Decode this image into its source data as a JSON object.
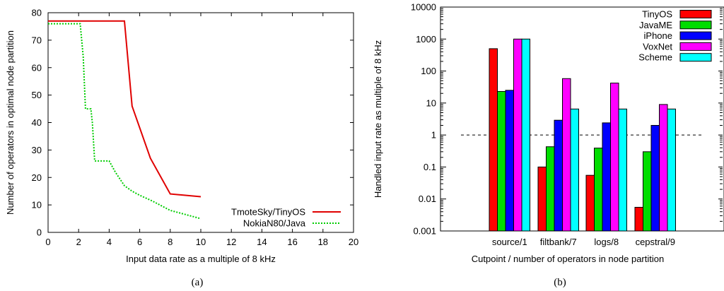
{
  "chart_data": [
    {
      "type": "line",
      "caption": "(a)",
      "xlabel": "Input data rate as a multiple of 8 kHz",
      "ylabel": "Number of operators in optimal node partition",
      "xlim": [
        0,
        20
      ],
      "ylim": [
        0,
        80
      ],
      "xticks": [
        "0",
        "2",
        "4",
        "6",
        "8",
        "10",
        "12",
        "14",
        "16",
        "18",
        "20"
      ],
      "yticks": [
        "0",
        "10",
        "20",
        "30",
        "40",
        "50",
        "60",
        "70",
        "80"
      ],
      "grid": false,
      "legend_position": "bottom-right",
      "series": [
        {
          "name": "TmoteSky/TinyOS",
          "color": "#e00000",
          "style": "solid",
          "x": [
            0,
            5,
            5.5,
            6.7,
            8,
            10
          ],
          "y": [
            77,
            77,
            46,
            27,
            14,
            13
          ]
        },
        {
          "name": "NokiaN80/Java",
          "color": "#00cc00",
          "style": "dotted",
          "x": [
            0,
            2.1,
            2.3,
            2.45,
            2.5,
            2.8,
            2.9,
            3.05,
            4,
            4.4,
            5,
            5.5,
            6,
            6.8,
            8,
            9,
            10
          ],
          "y": [
            76,
            76,
            64,
            45,
            45,
            45,
            40,
            26,
            26,
            22,
            17,
            15,
            13.5,
            11.5,
            8,
            6.5,
            5
          ]
        }
      ]
    },
    {
      "type": "bar",
      "caption": "(b)",
      "xlabel": "Cutpoint / number of operators in node partition",
      "ylabel": "Handled input rate as multiple of 8 kHz",
      "yscale": "log",
      "ylim": [
        0.001,
        10000
      ],
      "yticks": [
        "0.001",
        "0.01",
        "0.1",
        "1",
        "10",
        "100",
        "1000",
        "10000"
      ],
      "reference_line": 1,
      "legend_position": "top-right",
      "categories": [
        "source/1",
        "filtbank/7",
        "logs/8",
        "cepstral/9"
      ],
      "series": [
        {
          "name": "TinyOS",
          "color": "#ff0000",
          "values": [
            500,
            0.1,
            0.055,
            0.0055
          ]
        },
        {
          "name": "JavaME",
          "color": "#00dd00",
          "values": [
            23,
            0.43,
            0.39,
            0.3
          ]
        },
        {
          "name": "iPhone",
          "color": "#0000ff",
          "values": [
            25,
            2.9,
            2.4,
            2.0
          ]
        },
        {
          "name": "VoxNet",
          "color": "#ff00ff",
          "values": [
            1000,
            58,
            42,
            9
          ]
        },
        {
          "name": "Scheme",
          "color": "#00ffff",
          "values": [
            1000,
            6.5,
            6.5,
            6.5
          ]
        }
      ]
    }
  ]
}
